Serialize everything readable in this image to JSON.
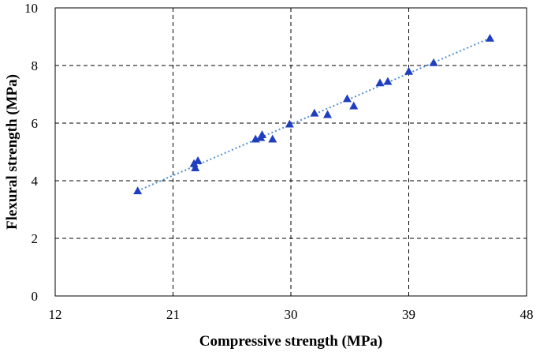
{
  "chart_data": {
    "type": "scatter",
    "xlabel": "Compressive strength (MPa)",
    "ylabel": "Flexural strength (MPa)",
    "xlim": [
      12,
      48
    ],
    "ylim": [
      0,
      10
    ],
    "xticks": [
      12,
      21,
      30,
      39,
      48
    ],
    "yticks": [
      0,
      2,
      4,
      6,
      8,
      10
    ],
    "grid": true,
    "grid_style": "dashed",
    "marker": "triangle",
    "marker_color": "#1f3fbf",
    "trendline": {
      "type": "linear",
      "from": [
        18.3,
        3.65
      ],
      "to": [
        45.2,
        8.95
      ],
      "color": "#4f8fcf",
      "style": "dotted"
    },
    "points": [
      {
        "x": 18.3,
        "y": 3.65
      },
      {
        "x": 22.6,
        "y": 4.6
      },
      {
        "x": 22.9,
        "y": 4.7
      },
      {
        "x": 22.7,
        "y": 4.45
      },
      {
        "x": 27.3,
        "y": 5.45
      },
      {
        "x": 27.7,
        "y": 5.5
      },
      {
        "x": 27.8,
        "y": 5.6
      },
      {
        "x": 28.6,
        "y": 5.45
      },
      {
        "x": 29.9,
        "y": 5.97
      },
      {
        "x": 31.8,
        "y": 6.35
      },
      {
        "x": 32.8,
        "y": 6.3
      },
      {
        "x": 34.3,
        "y": 6.85
      },
      {
        "x": 34.8,
        "y": 6.6
      },
      {
        "x": 36.8,
        "y": 7.4
      },
      {
        "x": 37.4,
        "y": 7.45
      },
      {
        "x": 39.0,
        "y": 7.8
      },
      {
        "x": 40.9,
        "y": 8.1
      },
      {
        "x": 45.2,
        "y": 8.95
      }
    ]
  }
}
